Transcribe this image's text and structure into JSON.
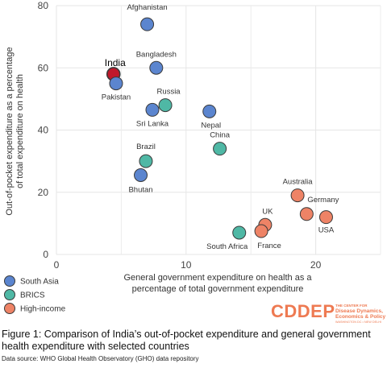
{
  "chart_data": {
    "type": "scatter",
    "xlabel": [
      "General government expenditure on health as a",
      "percentage of total government expenditure"
    ],
    "ylabel": [
      "Out-of-pocket expenditure as a percentage",
      "of total expenditure on health"
    ],
    "xlim": [
      0,
      25
    ],
    "ylim": [
      0,
      80
    ],
    "xticks": [
      0,
      10,
      20
    ],
    "yticks": [
      0,
      20,
      40,
      60,
      80
    ],
    "grid": true,
    "legend_position": "bottom-left",
    "groups": [
      {
        "name": "South Asia",
        "color": "#5b85cf"
      },
      {
        "name": "BRICS",
        "color": "#4fb8a5"
      },
      {
        "name": "High-income",
        "color": "#ee8366"
      }
    ],
    "points": [
      {
        "label": "Afghanistan",
        "x": 7.0,
        "y": 74,
        "group": "South Asia"
      },
      {
        "label": "Bangladesh",
        "x": 7.7,
        "y": 60,
        "group": "South Asia"
      },
      {
        "label": "India",
        "x": 4.4,
        "y": 58,
        "group": "India",
        "color": "#c0182b",
        "highlight": true
      },
      {
        "label": "Pakistan",
        "x": 4.6,
        "y": 55,
        "group": "South Asia"
      },
      {
        "label": "Sri Lanka",
        "x": 7.4,
        "y": 46.5,
        "group": "South Asia"
      },
      {
        "label": "Russia",
        "x": 8.4,
        "y": 48,
        "group": "BRICS"
      },
      {
        "label": "Nepal",
        "x": 11.8,
        "y": 46,
        "group": "South Asia"
      },
      {
        "label": "China",
        "x": 12.6,
        "y": 34,
        "group": "BRICS"
      },
      {
        "label": "Brazil",
        "x": 6.9,
        "y": 30,
        "group": "BRICS"
      },
      {
        "label": "Bhutan",
        "x": 6.5,
        "y": 25.5,
        "group": "South Asia"
      },
      {
        "label": "Australia",
        "x": 18.6,
        "y": 19,
        "group": "High-income"
      },
      {
        "label": "Germany",
        "x": 19.3,
        "y": 13,
        "group": "High-income"
      },
      {
        "label": "USA",
        "x": 20.8,
        "y": 12,
        "group": "High-income"
      },
      {
        "label": "UK",
        "x": 16.1,
        "y": 9.5,
        "group": "High-income"
      },
      {
        "label": "France",
        "x": 15.8,
        "y": 7.5,
        "group": "High-income"
      },
      {
        "label": "South Africa",
        "x": 14.1,
        "y": 7,
        "group": "BRICS"
      }
    ]
  },
  "logo": {
    "name": "CDDEP",
    "tagline": [
      "THE CENTER FOR",
      "Disease Dynamics,",
      "Economics & Policy"
    ],
    "locations": "WASHINGTON DC • NEW DELHI"
  },
  "caption": {
    "text": "Figure 1: Comparison of India’s out-of-pocket expenditure and general government health expenditure with selected countries",
    "source": "Data source: WHO Global Health Observatory (GHO) data repository"
  }
}
